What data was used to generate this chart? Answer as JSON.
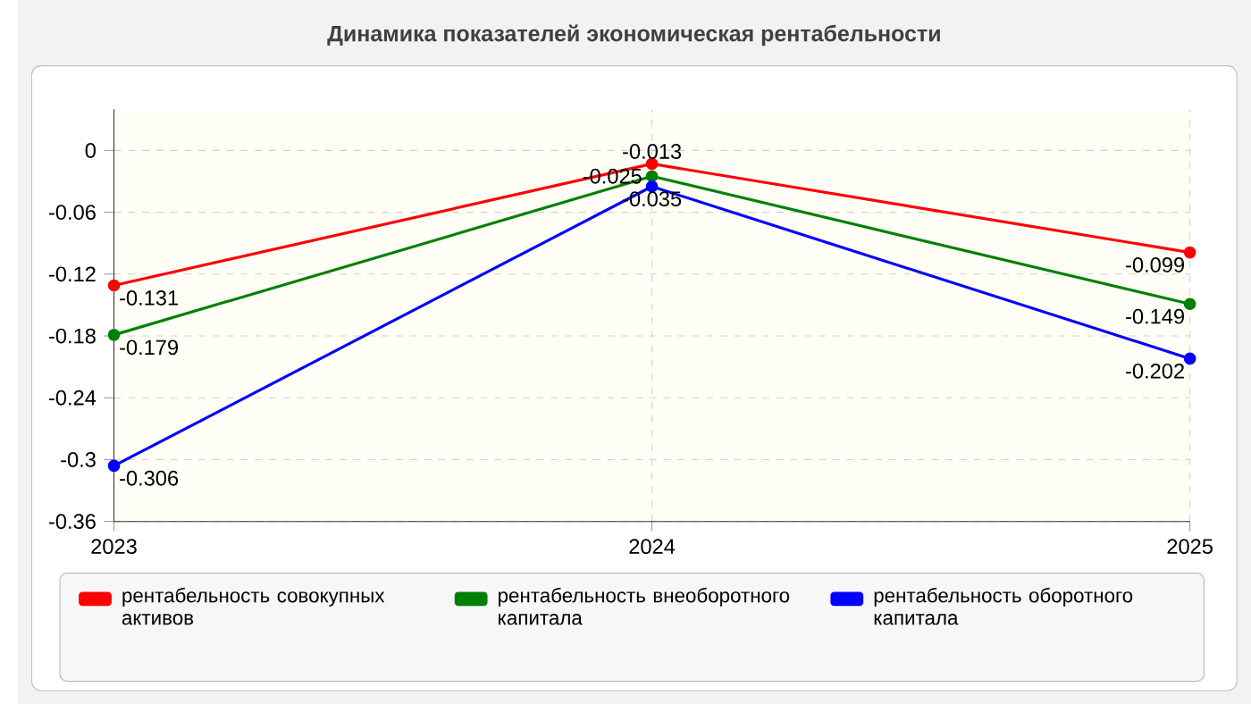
{
  "chart_data": {
    "type": "line",
    "title": "Динамика показателей экономическая рентабельности",
    "categories": [
      "2023",
      "2024",
      "2025"
    ],
    "series": [
      {
        "name": "рентабельность совокупных активов",
        "color": "#ff0000",
        "values": [
          -0.131,
          -0.013,
          -0.099
        ]
      },
      {
        "name": "рентабельность внеоборотного капитала",
        "color": "#008000",
        "values": [
          -0.179,
          -0.025,
          -0.149
        ]
      },
      {
        "name": "рентабельность оборотного капитала",
        "color": "#0000ff",
        "values": [
          -0.306,
          -0.035,
          -0.202
        ]
      }
    ],
    "ylim": [
      -0.36,
      0.04
    ],
    "yticks": [
      -0.36,
      -0.3,
      -0.24,
      -0.18,
      -0.12,
      -0.06,
      0
    ],
    "grid": true,
    "legend": "bottom",
    "marker": "circle",
    "line_style": "solid",
    "data_labels": true
  }
}
